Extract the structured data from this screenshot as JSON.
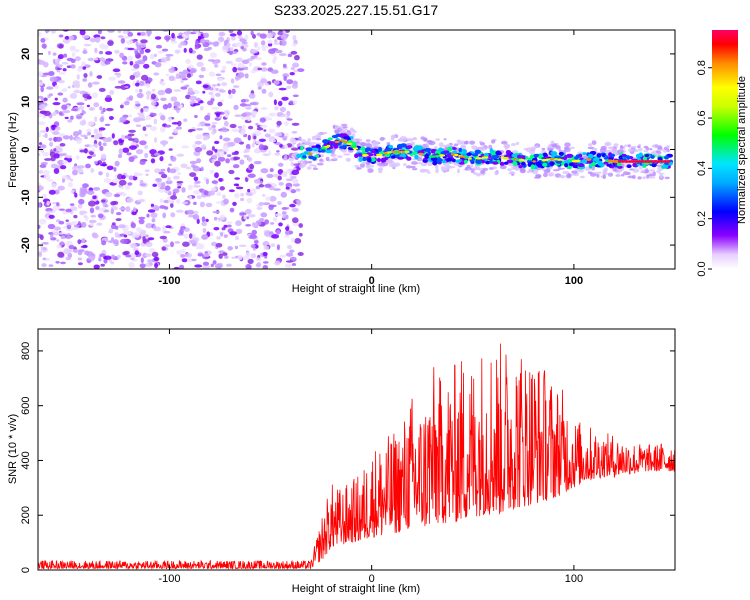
{
  "chart_data": [
    {
      "type": "heatmap",
      "title": "S233.2025.227.15.51.G17",
      "xlabel": "Height of straight line (km)",
      "ylabel": "Frequency (Hz)",
      "xlim": [
        -165,
        150
      ],
      "ylim": [
        -25,
        25
      ],
      "x_ticks": [
        -100,
        0,
        100
      ],
      "y_ticks": [
        -20,
        -10,
        0,
        10,
        20
      ],
      "x_tick_labels": [
        "-100",
        "0",
        "100"
      ],
      "y_tick_labels": [
        "-20",
        "-10",
        "0",
        "10",
        "20"
      ],
      "noise_region_x": [
        -165,
        -35
      ],
      "signal_track": {
        "x": [
          -36,
          -30,
          -25,
          -20,
          -15,
          -10,
          -5,
          0,
          10,
          20,
          30,
          40,
          50,
          60,
          70,
          80,
          90,
          100,
          110,
          120,
          130,
          140,
          148
        ],
        "y": [
          0,
          -1,
          0,
          1,
          2,
          1,
          -1,
          -1.5,
          -0.5,
          -0.5,
          -1.5,
          -1,
          -2,
          -1.5,
          -2,
          -2.5,
          -2,
          -2.5,
          -2,
          -2.5,
          -2.5,
          -2.5,
          -2.5
        ]
      },
      "colorbar": {
        "label": "Normalized spectral amplitude",
        "range": [
          0,
          0.95
        ],
        "ticks": [
          0.0,
          0.2,
          0.4,
          0.6,
          0.8
        ],
        "tick_labels": [
          "0.0",
          "0.2",
          "0.4",
          "0.6",
          "0.8"
        ],
        "colors": [
          "#ffffff",
          "#8a00ff",
          "#0000ff",
          "#00e5ff",
          "#00ff00",
          "#ffff00",
          "#ff8c00",
          "#ff0000",
          "#ff0066"
        ]
      }
    },
    {
      "type": "line",
      "title": "",
      "xlabel": "Height of straight line (km)",
      "ylabel": "SNR (10 * v/v)",
      "xlim": [
        -165,
        150
      ],
      "ylim": [
        0,
        880
      ],
      "x_ticks": [
        -100,
        0,
        100
      ],
      "y_ticks": [
        0,
        200,
        400,
        600,
        800
      ],
      "x_tick_labels": [
        "-100",
        "0",
        "100"
      ],
      "y_tick_labels": [
        "0",
        "200",
        "400",
        "600",
        "800"
      ],
      "color": "#ff0000",
      "envelope": {
        "x": [
          -165,
          -30,
          -24,
          -20,
          -15,
          -10,
          -5,
          0,
          5,
          10,
          15,
          20,
          25,
          30,
          35,
          40,
          45,
          50,
          55,
          60,
          65,
          70,
          75,
          80,
          85,
          90,
          95,
          100,
          105,
          110,
          115,
          120,
          125,
          130,
          135,
          140,
          145,
          150
        ],
        "min": [
          5,
          5,
          40,
          80,
          90,
          100,
          100,
          120,
          120,
          130,
          140,
          150,
          150,
          160,
          170,
          170,
          180,
          190,
          200,
          200,
          200,
          220,
          230,
          240,
          250,
          260,
          280,
          300,
          320,
          330,
          340,
          340,
          350,
          350,
          360,
          360,
          360,
          360
        ],
        "max": [
          35,
          35,
          220,
          320,
          300,
          330,
          360,
          450,
          480,
          500,
          550,
          650,
          600,
          760,
          700,
          750,
          800,
          780,
          840,
          860,
          830,
          860,
          820,
          800,
          760,
          700,
          660,
          560,
          540,
          520,
          500,
          500,
          480,
          470,
          460,
          460,
          470,
          470
        ]
      }
    }
  ]
}
